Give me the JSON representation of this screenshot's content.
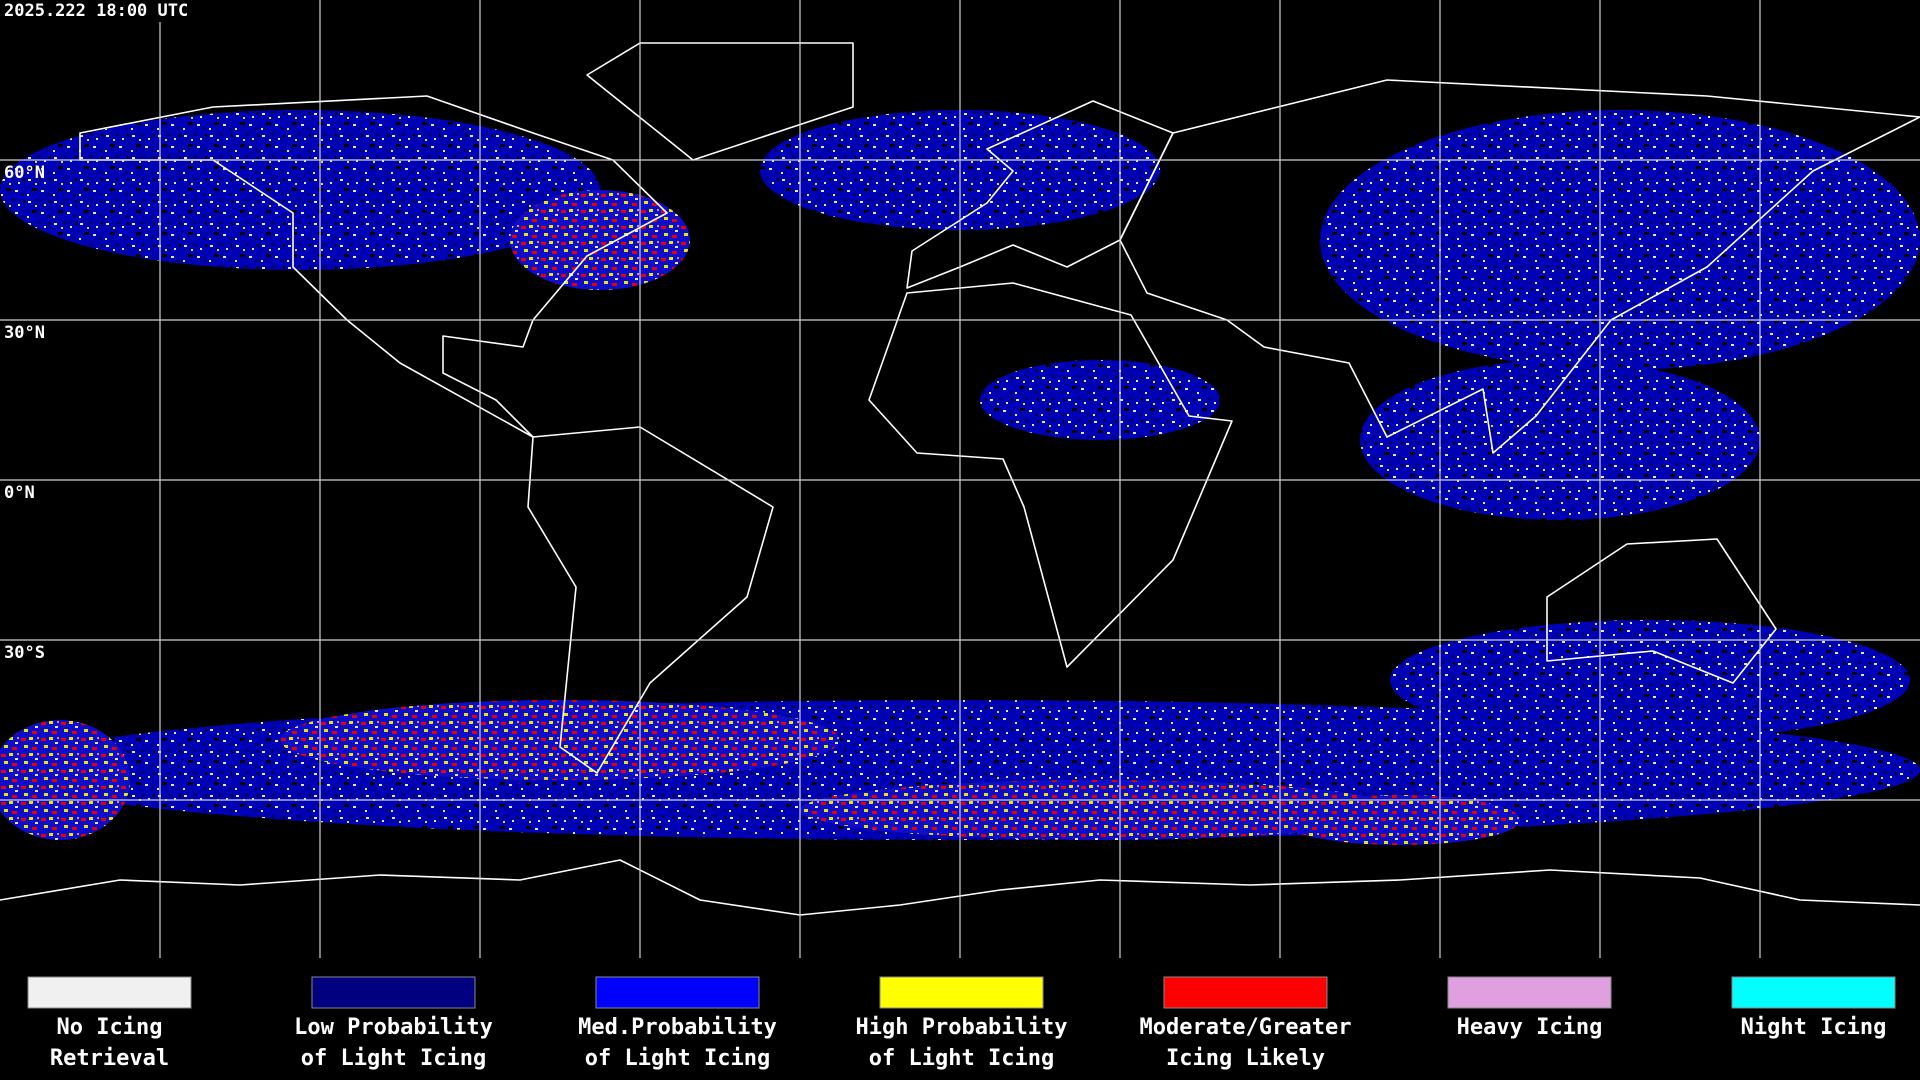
{
  "header": {
    "timestamp": "2025.222 18:00 UTC"
  },
  "map": {
    "latitude_labels": [
      "60°N",
      "30°N",
      "0°N",
      "30°S"
    ]
  },
  "legend": {
    "items": [
      {
        "color": "#f0f0f0",
        "label": [
          "No Icing",
          "Retrieval"
        ]
      },
      {
        "color": "#000080",
        "label": [
          "Low Probability",
          "of Light Icing"
        ]
      },
      {
        "color": "#0000ff",
        "label": [
          "Med.Probability",
          "of Light Icing"
        ]
      },
      {
        "color": "#ffff00",
        "label": [
          "High Probability",
          "of Light Icing"
        ]
      },
      {
        "color": "#ff0000",
        "label": [
          "Moderate/Greater",
          "Icing Likely"
        ]
      },
      {
        "color": "#e0a0e0",
        "label": [
          "Heavy Icing"
        ]
      },
      {
        "color": "#00ffff",
        "label": [
          "Night Icing"
        ]
      }
    ]
  }
}
